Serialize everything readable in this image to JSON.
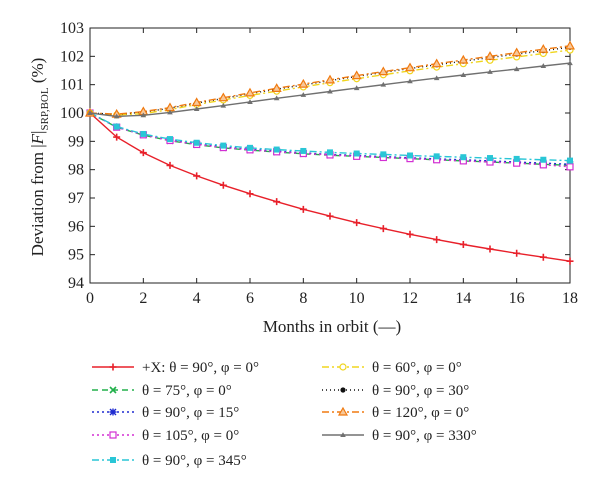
{
  "chart_data": {
    "type": "line",
    "xlabel": "Months in orbit (—)",
    "ylabel": "Deviation from |F|SRP,BOL (%)",
    "ylabel_parts": {
      "prefix": "Deviation from ",
      "symbol": "F",
      "subscript": "SRP,BOL",
      "suffix": " (%)"
    },
    "xlim": [
      0,
      18
    ],
    "ylim": [
      94,
      103
    ],
    "xticks": [
      0,
      2,
      4,
      6,
      8,
      10,
      12,
      14,
      16,
      18
    ],
    "yticks": [
      94,
      95,
      96,
      97,
      98,
      99,
      100,
      101,
      102,
      103
    ],
    "grid": false,
    "legend_placement": "bottom",
    "x": [
      0,
      1,
      2,
      3,
      4,
      5,
      6,
      7,
      8,
      9,
      10,
      11,
      12,
      13,
      14,
      15,
      16,
      17,
      18
    ],
    "series": [
      {
        "name": "+X: θ = 90°, φ = 0°",
        "color": "#e8202a",
        "dash": "",
        "marker": "plus",
        "values": [
          100.0,
          99.15,
          98.6,
          98.15,
          97.78,
          97.45,
          97.15,
          96.87,
          96.6,
          96.36,
          96.13,
          95.92,
          95.72,
          95.53,
          95.36,
          95.2,
          95.05,
          94.91,
          94.77
        ]
      },
      {
        "name": "θ = 75°, φ = 0°",
        "color": "#22b04b",
        "dash": "6,4",
        "marker": "x",
        "values": [
          100.0,
          99.5,
          99.22,
          99.02,
          98.88,
          98.77,
          98.69,
          98.62,
          98.56,
          98.51,
          98.47,
          98.43,
          98.39,
          98.35,
          98.31,
          98.27,
          98.23,
          98.19,
          98.15
        ]
      },
      {
        "name": "θ = 90°, φ = 15°",
        "color": "#1f2bd0",
        "dash": "2,3",
        "marker": "star",
        "values": [
          100.0,
          99.51,
          99.24,
          99.05,
          98.91,
          98.8,
          98.72,
          98.65,
          98.59,
          98.54,
          98.5,
          98.46,
          98.42,
          98.38,
          98.35,
          98.31,
          98.27,
          98.23,
          98.19
        ]
      },
      {
        "name": "θ = 105°, φ = 0°",
        "color": "#d32fd3",
        "dash": "2,3",
        "marker": "square-open",
        "values": [
          100.0,
          99.5,
          99.23,
          99.03,
          98.89,
          98.78,
          98.7,
          98.63,
          98.57,
          98.52,
          98.47,
          98.43,
          98.39,
          98.35,
          98.31,
          98.27,
          98.23,
          98.17,
          98.1
        ]
      },
      {
        "name": "θ = 90°, φ = 345°",
        "color": "#29c6d6",
        "dash": "7,3,2,3",
        "marker": "square",
        "values": [
          100.0,
          99.52,
          99.26,
          99.08,
          98.95,
          98.85,
          98.77,
          98.71,
          98.66,
          98.61,
          98.57,
          98.54,
          98.5,
          98.47,
          98.44,
          98.41,
          98.38,
          98.35,
          98.32
        ]
      },
      {
        "name": "θ = 60°, φ = 0°",
        "color": "#f0d51e",
        "dash": "7,3,2,3",
        "marker": "circle-open",
        "values": [
          100.0,
          99.93,
          99.98,
          100.12,
          100.3,
          100.46,
          100.62,
          100.77,
          100.92,
          101.07,
          101.21,
          101.35,
          101.49,
          101.62,
          101.74,
          101.86,
          101.98,
          102.1,
          102.22
        ]
      },
      {
        "name": "θ = 90°, φ = 30°",
        "color": "#111111",
        "dash": "1,3",
        "marker": "circle",
        "values": [
          100.0,
          99.95,
          100.03,
          100.17,
          100.35,
          100.51,
          100.68,
          100.84,
          100.99,
          101.14,
          101.29,
          101.43,
          101.57,
          101.7,
          101.83,
          101.96,
          102.08,
          102.2,
          102.32
        ]
      },
      {
        "name": "θ = 120°, φ = 0°",
        "color": "#f07a10",
        "dash": "7,3,2,3",
        "marker": "triangle",
        "values": [
          100.0,
          99.96,
          100.05,
          100.19,
          100.37,
          100.54,
          100.71,
          100.87,
          101.02,
          101.17,
          101.32,
          101.46,
          101.6,
          101.74,
          101.87,
          102.0,
          102.13,
          102.25,
          102.37
        ]
      },
      {
        "name": "θ = 90°, φ = 330°",
        "color": "#707070",
        "dash": "",
        "marker": "triangle-small",
        "values": [
          100.0,
          99.88,
          99.92,
          100.02,
          100.14,
          100.26,
          100.39,
          100.52,
          100.64,
          100.76,
          100.88,
          101.0,
          101.12,
          101.23,
          101.34,
          101.45,
          101.55,
          101.66,
          101.76
        ]
      }
    ]
  }
}
